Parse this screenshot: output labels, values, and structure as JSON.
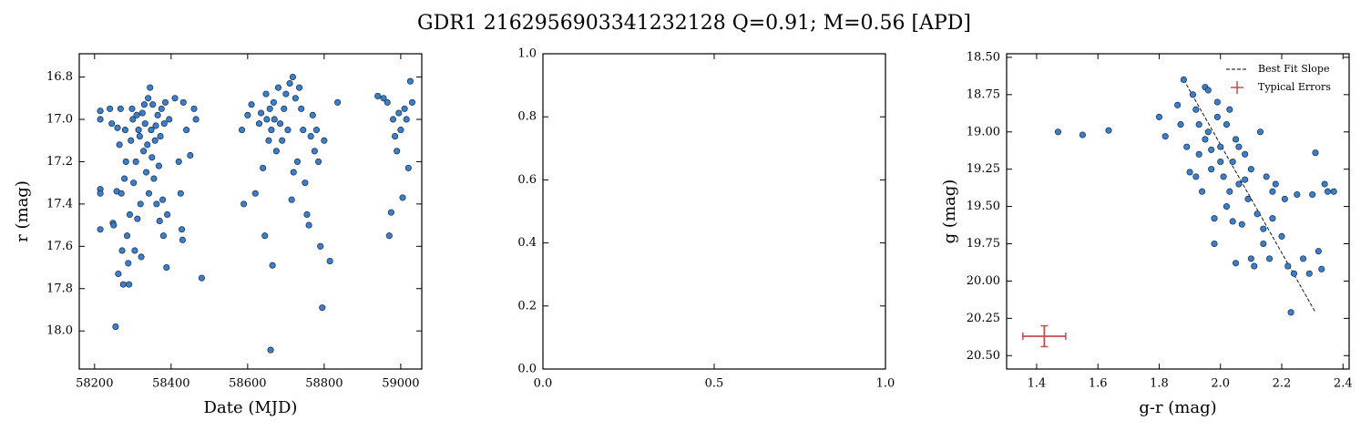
{
  "title": "GDR1 2162956903341232128  Q=0.91; M=0.56 [APD]",
  "chart_data": [
    {
      "type": "scatter",
      "xlabel": "Date (MJD)",
      "ylabel": "r (mag)",
      "color": "#3a7fcc",
      "xlim": [
        58160,
        59055
      ],
      "ylim": [
        18.18,
        16.69
      ],
      "xticks": [
        58200,
        58400,
        58600,
        58800,
        59000
      ],
      "yticks": [
        16.8,
        {
          "value": 17.0,
          "label": "17.0"
        },
        17.2,
        17.4,
        17.6,
        17.8,
        {
          "value": 18.0,
          "label": "18.0"
        }
      ],
      "x": [
        58215,
        58215,
        58215,
        58215,
        58215,
        58240,
        58245,
        58248,
        58250,
        58255,
        58258,
        58260,
        58262,
        58265,
        58268,
        58270,
        58272,
        58275,
        58278,
        58280,
        58282,
        58285,
        58288,
        58290,
        58292,
        58295,
        58298,
        58300,
        58302,
        58305,
        58308,
        58310,
        58312,
        58315,
        58318,
        58320,
        58322,
        58325,
        58328,
        58330,
        58332,
        58335,
        58338,
        58340,
        58342,
        58345,
        58348,
        58350,
        58352,
        58355,
        58358,
        58360,
        58362,
        58365,
        58368,
        58370,
        58372,
        58375,
        58378,
        58380,
        58382,
        58385,
        58388,
        58390,
        58395,
        58410,
        58420,
        58425,
        58428,
        58430,
        58432,
        58440,
        58450,
        58460,
        58465,
        58480,
        58585,
        58590,
        58600,
        58610,
        58620,
        58630,
        58635,
        58640,
        58645,
        58648,
        58650,
        58655,
        58658,
        58660,
        58662,
        58665,
        58668,
        58670,
        58675,
        58680,
        58685,
        58690,
        58695,
        58700,
        58705,
        58710,
        58715,
        58718,
        58720,
        58725,
        58730,
        58735,
        58740,
        58745,
        58750,
        58755,
        58760,
        58765,
        58770,
        58775,
        58780,
        58785,
        58790,
        58795,
        58800,
        58815,
        58835,
        58940,
        58955,
        58965,
        58970,
        58975,
        58980,
        58985,
        58990,
        58995,
        59000,
        59005,
        59010,
        59015,
        59020,
        59025,
        59030
      ],
      "y": [
        16.96,
        17.0,
        17.33,
        17.35,
        17.52,
        16.95,
        17.02,
        17.49,
        17.5,
        17.98,
        17.34,
        17.04,
        17.73,
        17.12,
        16.95,
        17.35,
        17.62,
        17.78,
        17.28,
        17.05,
        17.2,
        17.55,
        17.68,
        17.78,
        17.45,
        17.1,
        16.95,
        17.0,
        17.3,
        17.62,
        17.2,
        16.98,
        17.47,
        17.05,
        17.08,
        17.4,
        17.65,
        16.97,
        17.15,
        16.93,
        17.02,
        17.25,
        17.12,
        16.9,
        17.35,
        16.85,
        17.05,
        17.18,
        16.93,
        17.28,
        17.1,
        17.03,
        17.4,
        16.98,
        17.22,
        17.48,
        17.08,
        16.95,
        17.38,
        17.55,
        17.02,
        16.92,
        17.7,
        17.45,
        17.0,
        16.9,
        17.2,
        17.35,
        17.52,
        17.57,
        16.92,
        17.05,
        17.17,
        16.95,
        17.0,
        17.75,
        17.05,
        17.4,
        16.98,
        16.93,
        17.35,
        17.02,
        16.97,
        17.23,
        17.55,
        16.88,
        17.0,
        17.1,
        16.95,
        18.09,
        17.05,
        17.69,
        16.92,
        17.0,
        17.15,
        16.85,
        17.02,
        17.1,
        16.95,
        16.88,
        17.05,
        16.83,
        17.38,
        16.8,
        17.25,
        16.9,
        17.2,
        16.85,
        16.95,
        17.05,
        17.3,
        17.45,
        17.5,
        17.08,
        16.98,
        17.15,
        17.05,
        17.2,
        17.6,
        17.89,
        17.1,
        17.67,
        16.92,
        16.89,
        16.9,
        16.92,
        17.55,
        17.44,
        17.0,
        17.08,
        17.15,
        16.97,
        17.05,
        17.37,
        16.95,
        17.0,
        17.23,
        16.82,
        16.92
      ]
    },
    {
      "type": "scatter",
      "xlim": [
        0,
        1
      ],
      "ylim": [
        0,
        1
      ],
      "xticks": [
        {
          "value": 0,
          "label": "0.0"
        },
        0.5,
        {
          "value": 1,
          "label": "1.0"
        }
      ],
      "yticks": [
        {
          "value": 0,
          "label": "0.0"
        },
        0.2,
        0.4,
        0.6,
        0.8,
        {
          "value": 1,
          "label": "1.0"
        }
      ]
    },
    {
      "type": "scatter",
      "xlabel": "g-r (mag)",
      "ylabel": "g (mag)",
      "color": "#3a7fcc",
      "xlim": [
        1.302,
        2.42
      ],
      "ylim": [
        20.59,
        18.476
      ],
      "xticks": [
        1.4,
        1.6,
        1.8,
        {
          "value": 2.0,
          "label": "2.0"
        },
        2.2,
        2.4
      ],
      "yticks": [
        {
          "value": 18.5,
          "label": "18.50"
        },
        18.75,
        {
          "value": 19.0,
          "label": "19.00"
        },
        19.25,
        {
          "value": 19.5,
          "label": "19.50"
        },
        19.75,
        {
          "value": 20.0,
          "label": "20.00"
        },
        20.25,
        {
          "value": 20.5,
          "label": "20.50"
        }
      ],
      "x": [
        1.47,
        1.55,
        1.635,
        1.8,
        1.82,
        1.86,
        1.88,
        1.87,
        1.89,
        1.9,
        1.91,
        1.92,
        1.93,
        1.94,
        1.95,
        1.96,
        1.97,
        1.98,
        1.99,
        2.0,
        2.01,
        2.02,
        2.03,
        2.04,
        2.05,
        2.06,
        2.07,
        2.08,
        2.09,
        2.1,
        2.11,
        2.12,
        2.13,
        2.14,
        2.15,
        2.16,
        2.17,
        2.18,
        2.2,
        2.21,
        2.22,
        2.23,
        2.24,
        2.25,
        2.27,
        2.29,
        2.3,
        2.31,
        2.32,
        2.33,
        2.34,
        2.35,
        2.37,
        1.98,
        2.05,
        2.1,
        1.93,
        1.95,
        1.97,
        2.0,
        1.99,
        1.96,
        2.02,
        2.06,
        2.08,
        2.03,
        1.92,
        2.17,
        2.14,
        2.04
      ],
      "y": [
        19.0,
        19.02,
        18.99,
        18.9,
        19.03,
        18.82,
        18.65,
        18.95,
        19.1,
        19.27,
        18.75,
        18.85,
        19.15,
        19.4,
        18.7,
        19.0,
        19.25,
        19.58,
        18.9,
        19.1,
        19.3,
        19.5,
        18.85,
        19.2,
        19.05,
        19.35,
        19.62,
        19.15,
        19.45,
        19.25,
        19.9,
        19.55,
        19.0,
        19.65,
        19.3,
        19.85,
        19.4,
        19.35,
        19.7,
        19.45,
        19.9,
        20.21,
        19.95,
        19.42,
        19.85,
        19.95,
        19.42,
        19.14,
        19.8,
        19.92,
        19.35,
        19.4,
        19.4,
        19.75,
        19.88,
        19.85,
        18.95,
        19.05,
        19.12,
        19.2,
        18.8,
        18.72,
        18.95,
        19.1,
        19.32,
        19.4,
        19.3,
        19.58,
        19.75,
        19.6
      ],
      "legend": "upper right",
      "lines": [
        {
          "name": "Best Fit Slope",
          "color": "#000000",
          "x": [
            1.88,
            2.31
          ],
          "y": [
            18.65,
            20.21
          ]
        }
      ],
      "error_bars": [
        {
          "name": "Typical Errors",
          "color": "#c0504d",
          "x": 1.425,
          "y": 20.37,
          "xerr": 0.07,
          "yerr": 0.07
        }
      ]
    }
  ]
}
